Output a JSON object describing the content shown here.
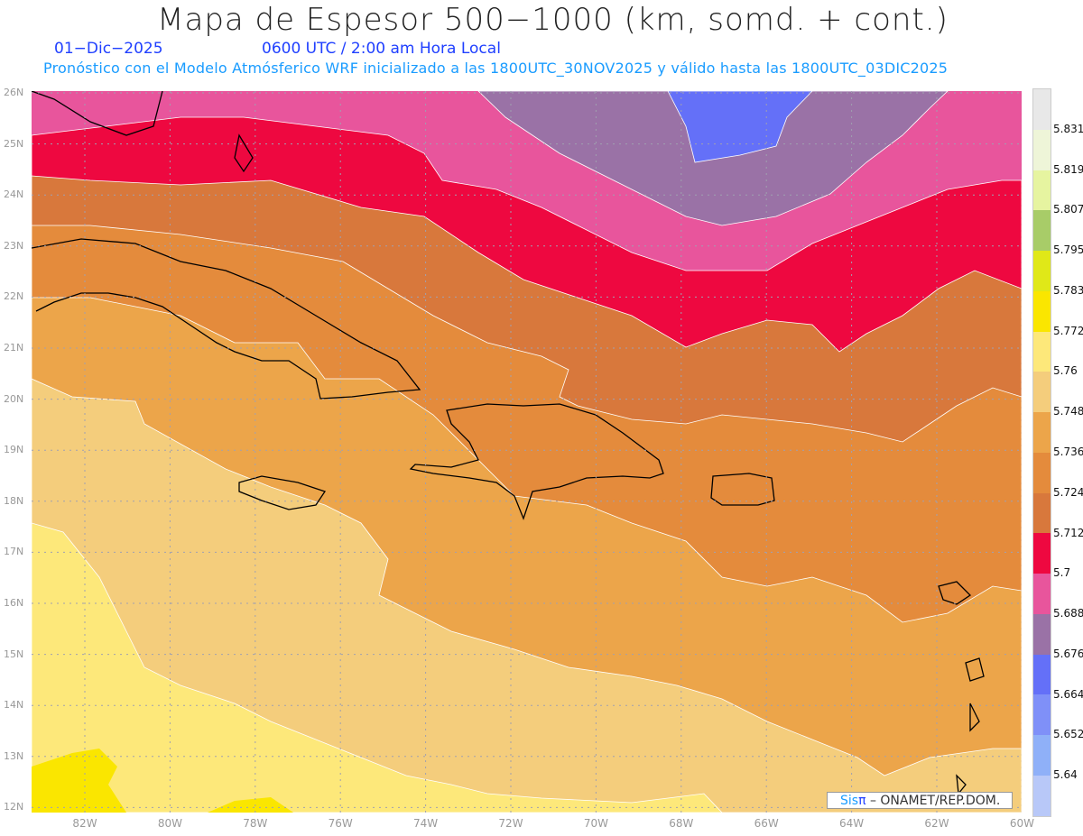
{
  "header": {
    "title": "Mapa de Espesor 500−1000 (km, somd. + cont.)",
    "date": "01−Dic−2025",
    "time": "0600 UTC / 2:00 am Hora Local",
    "subtitle": "Pronóstico con el Modelo Atmósferico WRF inicializado a las 1800UTC_30NOV2025 y válido hasta las  1800UTC_03DIC2025"
  },
  "map": {
    "lat_labels": [
      "26N",
      "25N",
      "24N",
      "23N",
      "22N",
      "21N",
      "20N",
      "19N",
      "18N",
      "17N",
      "16N",
      "15N",
      "14N",
      "13N",
      "12N"
    ],
    "lon_labels": [
      "82W",
      "80W",
      "78W",
      "76W",
      "74W",
      "72W",
      "70W",
      "68W",
      "66W",
      "64W",
      "62W",
      "60W"
    ]
  },
  "colorbar": {
    "labels": [
      "5.831",
      "5.819",
      "5.807",
      "5.795",
      "5.783",
      "5.772",
      "5.76",
      "5.748",
      "5.736",
      "5.724",
      "5.712",
      "5.7",
      "5.688",
      "5.676",
      "5.664",
      "5.652",
      "5.64"
    ],
    "colors": [
      "#e8e8e8",
      "#eef5d8",
      "#e6f4a0",
      "#a8cc68",
      "#e0e818",
      "#fae600",
      "#fde87a",
      "#f4cd7c",
      "#eca54a",
      "#e48b3c",
      "#d8783c",
      "#ee0840",
      "#e8559c",
      "#9a72a6",
      "#6470f8",
      "#7f90f8",
      "#8fb0f8",
      "#b8c8f8"
    ]
  },
  "credit": {
    "sis": "Sis",
    "pi": "π",
    "text": " –  ONAMET/REP.DOM."
  }
}
